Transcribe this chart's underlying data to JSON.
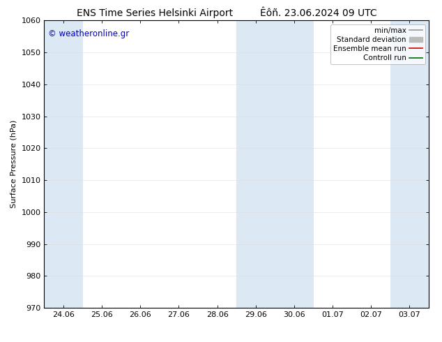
{
  "title1": "ENS Time Series Helsinki Airport",
  "title2": "Êôñ. 23.06.2024 09 UTC",
  "ylabel": "Surface Pressure (hPa)",
  "ylim": [
    970,
    1060
  ],
  "yticks": [
    970,
    980,
    990,
    1000,
    1010,
    1020,
    1030,
    1040,
    1050,
    1060
  ],
  "xtick_labels": [
    "24.06",
    "25.06",
    "26.06",
    "27.06",
    "28.06",
    "29.06",
    "30.06",
    "01.07",
    "02.07",
    "03.07"
  ],
  "xtick_positions": [
    0,
    1,
    2,
    3,
    4,
    5,
    6,
    7,
    8,
    9
  ],
  "xlim": [
    -0.5,
    9.5
  ],
  "bg_color": "#ffffff",
  "plot_bg_color": "#ffffff",
  "shaded_color": "#dce9f5",
  "shaded_bands": [
    {
      "x_start": -0.5,
      "x_end": 0.5
    },
    {
      "x_start": 4.5,
      "x_end": 6.5
    },
    {
      "x_start": 8.5,
      "x_end": 9.5
    }
  ],
  "legend_items": [
    {
      "label": "min/max",
      "color": "#999999",
      "lw": 1.2
    },
    {
      "label": "Standard deviation",
      "color": "#bbbbbb",
      "lw": 5
    },
    {
      "label": "Ensemble mean run",
      "color": "#cc0000",
      "lw": 1.2
    },
    {
      "label": "Controll run",
      "color": "#006600",
      "lw": 1.2
    }
  ],
  "watermark": "© weatheronline.gr",
  "watermark_color": "#0000bb",
  "grid_color": "#dddddd",
  "axis_color": "#000000",
  "tick_color": "#000000",
  "title_fontsize": 10,
  "axis_label_fontsize": 8,
  "tick_fontsize": 8,
  "legend_fontsize": 7.5,
  "watermark_fontsize": 8.5
}
